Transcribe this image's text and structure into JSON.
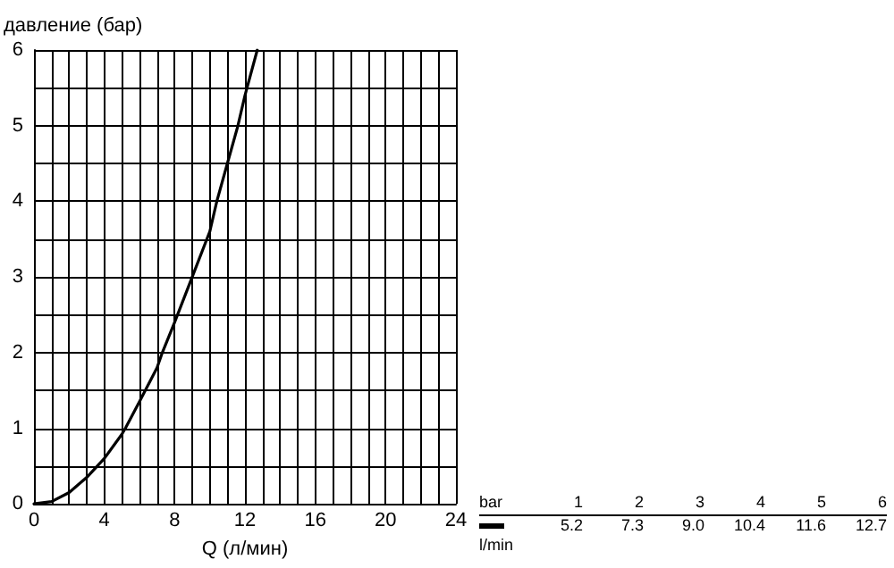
{
  "chart_data": {
    "type": "line",
    "xlabel": "Q (л/мин)",
    "ylabel": "давление (бар)",
    "xlim": [
      0,
      24
    ],
    "xticks": [
      0,
      4,
      8,
      12,
      16,
      20,
      24
    ],
    "ylim": [
      0,
      6
    ],
    "yticks": [
      0,
      1,
      2,
      3,
      4,
      5,
      6
    ],
    "grid": true,
    "marker": "none",
    "line_style": "solid",
    "annotations": [
      "bar",
      "1",
      "2",
      "3",
      "4",
      "5",
      "6",
      "5.2",
      "7.3",
      "9.0",
      "10.4",
      "11.6",
      "12.7",
      "l/min"
    ],
    "series": [
      {
        "color": "#000000",
        "x": [
          0,
          1,
          2,
          3,
          4,
          5,
          5.2,
          6,
          7,
          7.3,
          8,
          9,
          10,
          10.4,
          11,
          11.6,
          12,
          12.7
        ],
        "values": [
          0,
          0.03,
          0.15,
          0.35,
          0.6,
          0.92,
          1,
          1.35,
          1.8,
          2,
          2.4,
          3,
          3.6,
          4,
          4.5,
          5,
          5.4,
          6
        ]
      }
    ]
  }
}
